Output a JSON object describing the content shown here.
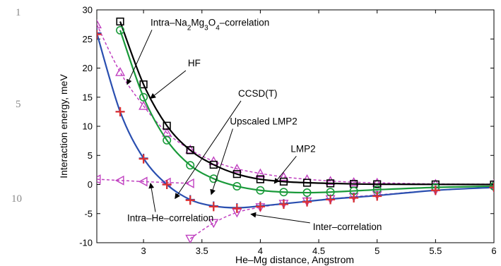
{
  "line_numbers": [
    "1",
    "5",
    "10"
  ],
  "chart_data": {
    "type": "line",
    "title": "",
    "xlabel": "He–Mg distance, Angstrom",
    "ylabel": "Interaction energy, meV",
    "xlim": [
      2.6,
      6.0
    ],
    "ylim": [
      -10,
      30
    ],
    "xticks": [
      3,
      3.5,
      4,
      4.5,
      5,
      5.5,
      6
    ],
    "xtick_labels": [
      "3",
      "3.5",
      "4",
      "4.5",
      "5",
      "5.5",
      "6"
    ],
    "yticks": [
      -10,
      -5,
      0,
      5,
      10,
      15,
      20,
      25,
      30
    ],
    "ytick_labels": [
      "-10",
      "-5",
      "0",
      "5",
      "10",
      "15",
      "20",
      "25",
      "30"
    ],
    "grid": false,
    "series": [
      {
        "name": "HF",
        "color": "#000000",
        "marker": "square",
        "line": "solid",
        "x": [
          2.8,
          3.0,
          3.2,
          3.4,
          3.6,
          3.8,
          4.0,
          4.2,
          4.4,
          4.6,
          4.8,
          5.0,
          5.5,
          6.0
        ],
        "y": [
          28.0,
          17.2,
          10.1,
          5.9,
          3.4,
          1.8,
          0.9,
          0.5,
          0.3,
          0.2,
          0.1,
          0.05,
          0.02,
          0.0
        ]
      },
      {
        "name": "LMP2",
        "color": "#1a9a3a",
        "marker": "circle",
        "line": "solid",
        "x": [
          2.8,
          3.0,
          3.2,
          3.4,
          3.6,
          3.8,
          4.0,
          4.2,
          4.4,
          4.6,
          4.8,
          5.0,
          5.5,
          6.0
        ],
        "y": [
          26.5,
          15.0,
          7.6,
          3.3,
          1.0,
          -0.3,
          -1.0,
          -1.3,
          -1.4,
          -1.3,
          -1.1,
          -0.9,
          -0.5,
          -0.3
        ]
      },
      {
        "name": "CCSD(T)",
        "color": "#2a4fb0",
        "marker": "plus",
        "line": "solid",
        "x": [
          2.6,
          2.8,
          3.0,
          3.2,
          3.4,
          3.6,
          3.8,
          4.0,
          4.2,
          4.4,
          4.6,
          4.8,
          5.0,
          5.5,
          6.0
        ],
        "y": [
          26.0,
          12.5,
          4.5,
          0.0,
          -2.6,
          -3.7,
          -4.0,
          -3.7,
          -3.3,
          -2.9,
          -2.5,
          -2.2,
          -1.9,
          -1.0,
          -0.5
        ]
      },
      {
        "name": "Upscaled LMP2",
        "color": "#e03030",
        "marker": "plus",
        "line": "none",
        "x": [
          2.6,
          2.8,
          3.0,
          3.2,
          3.4,
          3.6,
          3.8,
          4.0,
          4.2,
          4.4,
          4.6,
          4.8,
          5.0,
          5.5,
          6.0
        ],
        "y": [
          25.8,
          12.5,
          4.4,
          0.0,
          -2.7,
          -3.8,
          -4.1,
          -3.8,
          -3.4,
          -3.0,
          -2.6,
          -2.3,
          -2.0,
          -1.0,
          -0.5
        ]
      },
      {
        "name": "Intra–Na2Mg3O4–correlation",
        "color": "#c040c0",
        "marker": "triangle-up",
        "line": "dashed",
        "x": [
          2.6,
          2.8,
          3.0,
          3.2,
          3.4,
          3.6,
          3.8,
          4.0,
          4.2,
          4.4,
          4.6,
          4.8,
          5.0,
          5.5,
          6.0
        ],
        "y": [
          27.5,
          19.3,
          13.5,
          8.9,
          6.0,
          4.0,
          2.7,
          1.9,
          1.3,
          0.9,
          0.6,
          0.4,
          0.3,
          0.1,
          0.05
        ]
      },
      {
        "name": "Intra–He–correlation",
        "color": "#c040c0",
        "marker": "triangle-left",
        "line": "dashed",
        "x": [
          2.6,
          2.8,
          3.0,
          3.2,
          3.4
        ],
        "y": [
          0.9,
          0.7,
          0.5,
          0.35,
          0.2
        ]
      },
      {
        "name": "Inter–correlation",
        "color": "#c040c0",
        "marker": "triangle-down",
        "line": "dashed",
        "x": [
          3.4,
          3.6,
          3.8,
          4.0,
          4.2,
          4.4,
          4.6,
          4.8,
          5.0,
          5.5,
          6.0
        ],
        "y": [
          -9.3,
          -6.6,
          -4.8,
          -3.9,
          -3.3,
          -2.9,
          -2.5,
          -2.1,
          -1.8,
          -1.0,
          -0.5
        ]
      }
    ],
    "annotations": [
      {
        "label": "Intra–Na2Mg3O4–correlation",
        "plain": "Intra–Na",
        "sub1": "2",
        "mid1": "Mg",
        "sub2": "3",
        "mid2": "O",
        "sub3": "4",
        "tail": "–correlation",
        "at": [
          3.06,
          27.3
        ],
        "arrow_to": [
          2.86,
          17.2
        ]
      },
      {
        "label": "HF",
        "at": [
          3.38,
          20.3
        ],
        "arrow_to": [
          3.06,
          14.8
        ]
      },
      {
        "label": "CCSD(T)",
        "at": [
          3.81,
          15.1
        ],
        "arrow_to": [
          3.27,
          -2.4
        ]
      },
      {
        "label": "Upscaled LMP2",
        "at": [
          3.74,
          10.3
        ],
        "arrow_to": [
          3.58,
          -1.7
        ]
      },
      {
        "label": "LMP2",
        "at": [
          4.26,
          5.6
        ],
        "arrow_to": [
          4.12,
          0.2
        ]
      },
      {
        "label": "Intra–He–correlation",
        "at": [
          2.86,
          -6.3
        ],
        "arrow_to": [
          3.06,
          0.2
        ]
      },
      {
        "label": "Inter–correlation",
        "at": [
          4.45,
          -7.8
        ],
        "arrow_to": [
          3.92,
          -5.1
        ]
      }
    ]
  }
}
